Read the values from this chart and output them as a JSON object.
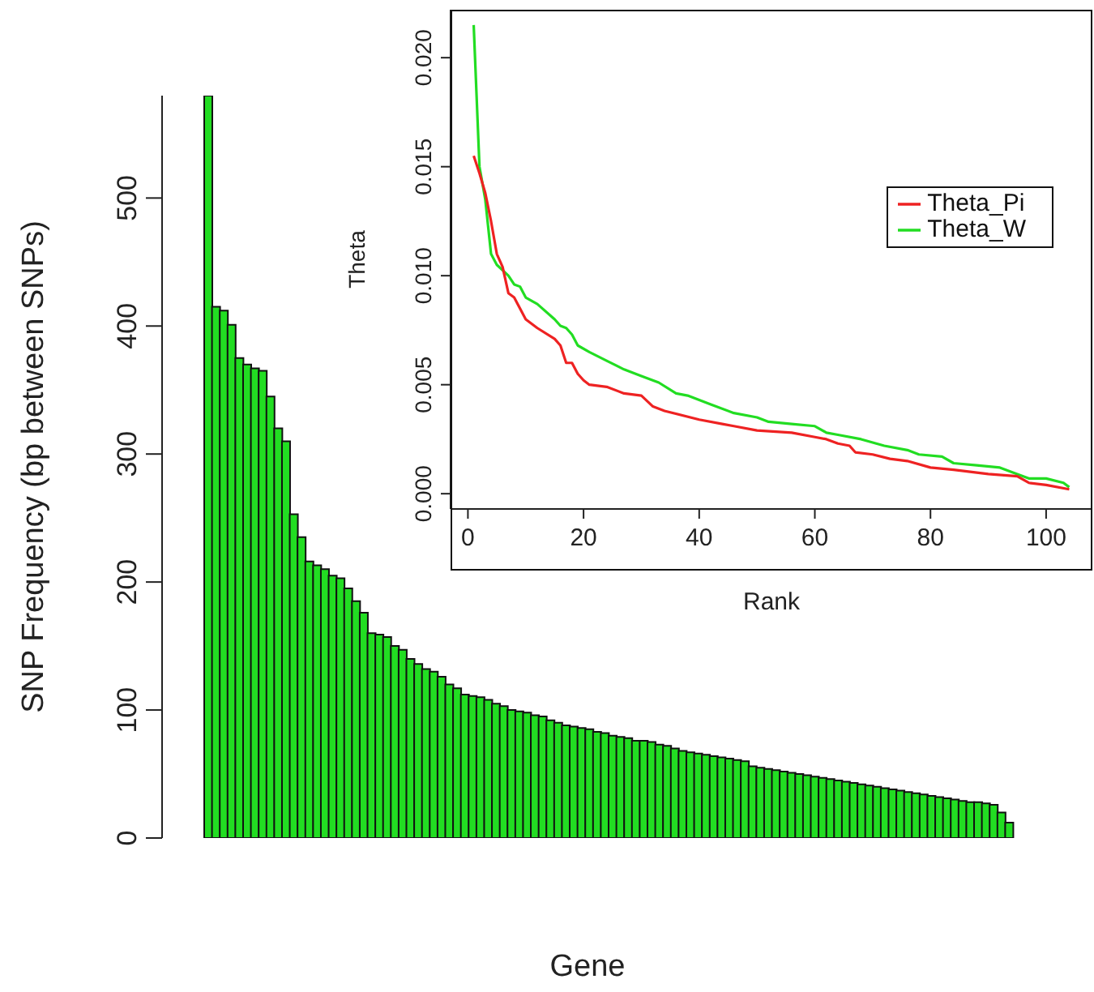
{
  "chart_data": [
    {
      "type": "bar",
      "xlabel": "Gene",
      "ylabel": "SNP Frequency (bp between SNPs)",
      "categories": [
        null,
        null,
        null,
        null,
        null,
        null,
        null,
        null,
        null,
        null,
        null,
        null,
        null,
        null,
        null,
        null,
        null,
        null,
        null,
        null,
        null,
        null,
        null,
        null,
        null,
        null,
        null,
        null,
        null,
        null,
        null,
        null,
        null,
        null,
        null,
        null,
        null,
        null,
        null,
        null,
        null,
        null,
        null,
        null,
        null,
        null,
        null,
        null,
        null,
        null,
        null,
        null,
        null,
        null,
        null,
        null,
        null,
        null,
        null,
        null,
        null,
        null,
        null,
        null,
        null,
        null,
        null,
        null,
        null,
        null,
        null,
        null,
        null,
        null,
        null,
        null,
        null,
        null,
        null,
        null,
        null,
        null,
        null,
        null,
        null,
        null,
        null,
        null,
        null,
        null,
        null,
        null,
        null,
        null,
        null,
        null,
        null,
        null,
        null,
        null,
        null,
        null,
        null,
        null
      ],
      "values": [
        580,
        415,
        412,
        401,
        375,
        370,
        367,
        365,
        345,
        320,
        310,
        253,
        235,
        216,
        213,
        210,
        205,
        203,
        195,
        185,
        176,
        160,
        159,
        157,
        150,
        147,
        140,
        136,
        132,
        130,
        126,
        120,
        117,
        112,
        111,
        110,
        108,
        105,
        103,
        100,
        99,
        98,
        96,
        95,
        92,
        90,
        88,
        87,
        86,
        85,
        83,
        82,
        80,
        79,
        78,
        76,
        76,
        75,
        73,
        72,
        70,
        68,
        67,
        66,
        65,
        64,
        63,
        62,
        61,
        60,
        56,
        55,
        54,
        53,
        52,
        51,
        50,
        49,
        48,
        47,
        46,
        45,
        44,
        43,
        42,
        41,
        40,
        39,
        38,
        37,
        36,
        35,
        34,
        33,
        32,
        31,
        30,
        29,
        28,
        28,
        27,
        26,
        20,
        12
      ],
      "color": "#22dd22",
      "ylim": [
        0,
        580
      ],
      "yticks": [
        0,
        100,
        200,
        300,
        400,
        500
      ],
      "tick_labels": "y"
    },
    {
      "type": "line",
      "xlabel": "Rank",
      "ylabel": "Theta",
      "legend": "right",
      "series": [
        {
          "name": "Theta_W",
          "color": "#22dd22",
          "x": [
            1,
            2,
            3,
            4,
            5,
            7,
            8,
            9,
            10,
            12,
            15,
            16,
            17,
            18,
            19,
            21,
            24,
            27,
            30,
            33,
            36,
            38,
            42,
            46,
            50,
            52,
            56,
            60,
            62,
            64,
            68,
            72,
            76,
            78,
            82,
            84,
            88,
            92,
            95,
            97,
            100,
            103,
            104
          ],
          "values": [
            0.0215,
            0.015,
            0.0135,
            0.011,
            0.0105,
            0.01,
            0.0096,
            0.0095,
            0.009,
            0.0087,
            0.008,
            0.0077,
            0.0076,
            0.0073,
            0.0068,
            0.0065,
            0.0061,
            0.0057,
            0.0054,
            0.0051,
            0.0046,
            0.0045,
            0.0041,
            0.0037,
            0.0035,
            0.0033,
            0.0032,
            0.0031,
            0.0028,
            0.0027,
            0.0025,
            0.0022,
            0.002,
            0.0018,
            0.0017,
            0.0014,
            0.0013,
            0.0012,
            0.0009,
            0.0007,
            0.0007,
            0.0005,
            0.0003
          ]
        },
        {
          "name": "Theta_Pi",
          "color": "#ee2222",
          "x": [
            1,
            2,
            3,
            4,
            5,
            6,
            7,
            8,
            10,
            12,
            15,
            16,
            17,
            18,
            19,
            20,
            21,
            24,
            27,
            30,
            32,
            34,
            40,
            44,
            46,
            50,
            56,
            60,
            62,
            64,
            66,
            67,
            70,
            73,
            76,
            80,
            84,
            90,
            95,
            97,
            100,
            104
          ],
          "values": [
            0.0155,
            0.0147,
            0.0138,
            0.0125,
            0.011,
            0.0104,
            0.0092,
            0.009,
            0.008,
            0.0076,
            0.0071,
            0.0068,
            0.006,
            0.006,
            0.0055,
            0.0052,
            0.005,
            0.0049,
            0.0046,
            0.0045,
            0.004,
            0.0038,
            0.0034,
            0.0032,
            0.0031,
            0.0029,
            0.0028,
            0.0026,
            0.0025,
            0.0023,
            0.0022,
            0.0019,
            0.0018,
            0.0016,
            0.0015,
            0.0012,
            0.0011,
            0.0009,
            0.0008,
            0.0005,
            0.0004,
            0.0002
          ]
        }
      ],
      "xlim": [
        -3,
        108
      ],
      "xticks": [
        0,
        20,
        40,
        60,
        80,
        100
      ],
      "ylim": [
        -0.0007,
        0.0222
      ],
      "yticks": [
        {
          "value": 0,
          "label": "0.000"
        },
        0.005,
        {
          "value": 0.01,
          "label": "0.010"
        },
        0.015,
        {
          "value": 0.02,
          "label": "0.020"
        }
      ]
    }
  ]
}
